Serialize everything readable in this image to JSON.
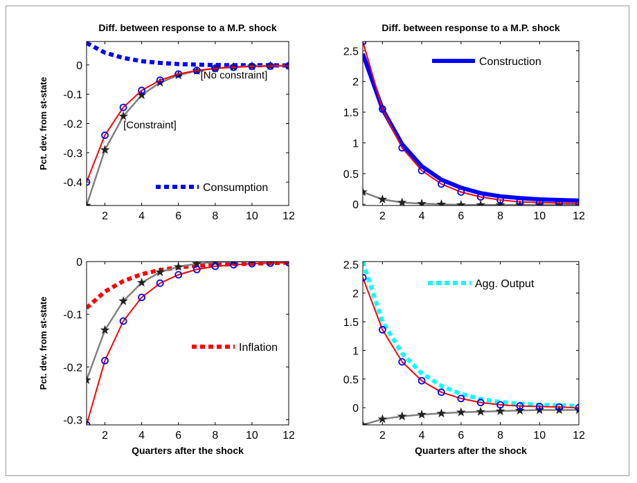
{
  "chart_data": [
    {
      "type": "line",
      "panel": "top-left",
      "title": "Diff. between response to a M.P. shock",
      "ylabel": "Pct. dev. from st-state",
      "xlabel": "",
      "xlim": [
        1,
        12
      ],
      "ylim": [
        -0.48,
        0.08
      ],
      "xticks": [
        2,
        4,
        6,
        8,
        10,
        12
      ],
      "yticks": [
        -0.4,
        -0.3,
        -0.2,
        -0.1,
        0
      ],
      "ytick_labels": [
        "-0.4",
        "-0.3",
        "-0.2",
        "-0.1",
        "0"
      ],
      "legend": {
        "label": "Consumption",
        "position": "bottom-right"
      },
      "annotations": [
        {
          "text": "[No constraint]",
          "x": 7.2,
          "y": -0.035
        },
        {
          "text": "[Constraint]",
          "x": 3.0,
          "y": -0.205
        }
      ],
      "x": [
        1,
        2,
        3,
        4,
        5,
        6,
        7,
        8,
        9,
        10,
        11,
        12
      ],
      "series": [
        {
          "role": "legend",
          "style": "dashed",
          "color": "#0000ff",
          "values": [
            0.075,
            0.042,
            0.024,
            0.013,
            0.007,
            0.003,
            0.001,
            0,
            -0.001,
            -0.001,
            -0.001,
            -0.002
          ]
        },
        {
          "role": "constraint",
          "style": "line-circle",
          "color": "#ff0000",
          "values": [
            -0.4,
            -0.24,
            -0.145,
            -0.087,
            -0.052,
            -0.031,
            -0.019,
            -0.012,
            -0.008,
            -0.005,
            -0.004,
            -0.003
          ]
        },
        {
          "role": "no-constraint",
          "style": "line-star",
          "color": "#808080",
          "values": [
            -0.48,
            -0.29,
            -0.175,
            -0.103,
            -0.06,
            -0.035,
            -0.02,
            -0.012,
            -0.007,
            -0.004,
            -0.003,
            -0.002
          ]
        }
      ]
    },
    {
      "type": "line",
      "panel": "top-right",
      "title": "Diff. between response to a M.P. shock",
      "ylabel": "",
      "xlabel": "",
      "xlim": [
        1,
        12
      ],
      "ylim": [
        -0.02,
        2.65
      ],
      "xticks": [
        2,
        4,
        6,
        8,
        10,
        12
      ],
      "yticks": [
        0,
        0.5,
        1,
        1.5,
        2,
        2.5
      ],
      "ytick_labels": [
        "0",
        "0.5",
        "1",
        "1.5",
        "2",
        "2.5"
      ],
      "legend": {
        "label": "Construction",
        "position": "top-right"
      },
      "annotations": [],
      "x": [
        1,
        2,
        3,
        4,
        5,
        6,
        7,
        8,
        9,
        10,
        11,
        12
      ],
      "series": [
        {
          "role": "legend",
          "style": "solid-thick",
          "color": "#0000ff",
          "values": [
            2.45,
            1.55,
            0.98,
            0.62,
            0.4,
            0.27,
            0.18,
            0.13,
            0.1,
            0.08,
            0.07,
            0.06
          ]
        },
        {
          "role": "constraint",
          "style": "line-circle",
          "color": "#ff0000",
          "values": [
            2.65,
            1.55,
            0.92,
            0.55,
            0.33,
            0.2,
            0.12,
            0.07,
            0.04,
            0.03,
            0.02,
            0.01
          ]
        },
        {
          "role": "no-constraint",
          "style": "line-star",
          "color": "#808080",
          "values": [
            0.2,
            0.08,
            0.03,
            0.01,
            0,
            -0.01,
            -0.01,
            -0.01,
            -0.01,
            -0.01,
            -0.01,
            -0.01
          ]
        }
      ]
    },
    {
      "type": "line",
      "panel": "bottom-left",
      "title": "",
      "ylabel": "Pct. dev. from st-state",
      "xlabel": "Quarters after the shock",
      "xlim": [
        1,
        12
      ],
      "ylim": [
        -0.31,
        0
      ],
      "xticks": [
        2,
        4,
        6,
        8,
        10,
        12
      ],
      "yticks": [
        -0.3,
        -0.2,
        -0.1,
        0
      ],
      "ytick_labels": [
        "-0.3",
        "-0.2",
        "-0.1",
        "0"
      ],
      "legend": {
        "label": "Inflation",
        "position": "center-right"
      },
      "annotations": [],
      "x": [
        1,
        2,
        3,
        4,
        5,
        6,
        7,
        8,
        9,
        10,
        11,
        12
      ],
      "series": [
        {
          "role": "legend",
          "style": "dashed",
          "color": "#ff0000",
          "values": [
            -0.088,
            -0.057,
            -0.037,
            -0.024,
            -0.016,
            -0.011,
            -0.008,
            -0.006,
            -0.005,
            -0.004,
            -0.003,
            -0.002
          ]
        },
        {
          "role": "constraint",
          "style": "line-circle",
          "color": "#ff0000",
          "values": [
            -0.31,
            -0.188,
            -0.113,
            -0.068,
            -0.041,
            -0.025,
            -0.015,
            -0.009,
            -0.006,
            -0.004,
            -0.003,
            -0.002
          ]
        },
        {
          "role": "no-constraint",
          "style": "line-star",
          "color": "#808080",
          "values": [
            -0.225,
            -0.13,
            -0.075,
            -0.04,
            -0.02,
            -0.01,
            -0.004,
            -0.001,
            0,
            0,
            0,
            0
          ]
        }
      ]
    },
    {
      "type": "line",
      "panel": "bottom-right",
      "title": "",
      "ylabel": "",
      "xlabel": "Quarters after the shock",
      "xlim": [
        1,
        12
      ],
      "ylim": [
        -0.3,
        2.55
      ],
      "xticks": [
        2,
        4,
        6,
        8,
        10,
        12
      ],
      "yticks": [
        0,
        0.5,
        1,
        1.5,
        2,
        2.5
      ],
      "ytick_labels": [
        "0",
        "0.5",
        "1",
        "1.5",
        "2",
        "2.5"
      ],
      "legend": {
        "label": "Agg. Output",
        "position": "top-right"
      },
      "annotations": [],
      "x": [
        1,
        2,
        3,
        4,
        5,
        6,
        7,
        8,
        9,
        10,
        11,
        12
      ],
      "series": [
        {
          "role": "legend",
          "style": "dashed",
          "color": "#00ffff",
          "values": [
            2.55,
            1.5,
            0.95,
            0.6,
            0.38,
            0.24,
            0.15,
            0.1,
            0.07,
            0.05,
            0.04,
            0.03
          ]
        },
        {
          "role": "constraint",
          "style": "line-circle",
          "color": "#ff0000",
          "values": [
            2.27,
            1.36,
            0.8,
            0.47,
            0.27,
            0.16,
            0.09,
            0.05,
            0.03,
            0.02,
            0.01,
            0
          ]
        },
        {
          "role": "no-constraint",
          "style": "line-star",
          "color": "#808080",
          "values": [
            -0.3,
            -0.2,
            -0.15,
            -0.12,
            -0.1,
            -0.08,
            -0.07,
            -0.06,
            -0.05,
            -0.04,
            -0.04,
            -0.04
          ]
        }
      ]
    }
  ]
}
